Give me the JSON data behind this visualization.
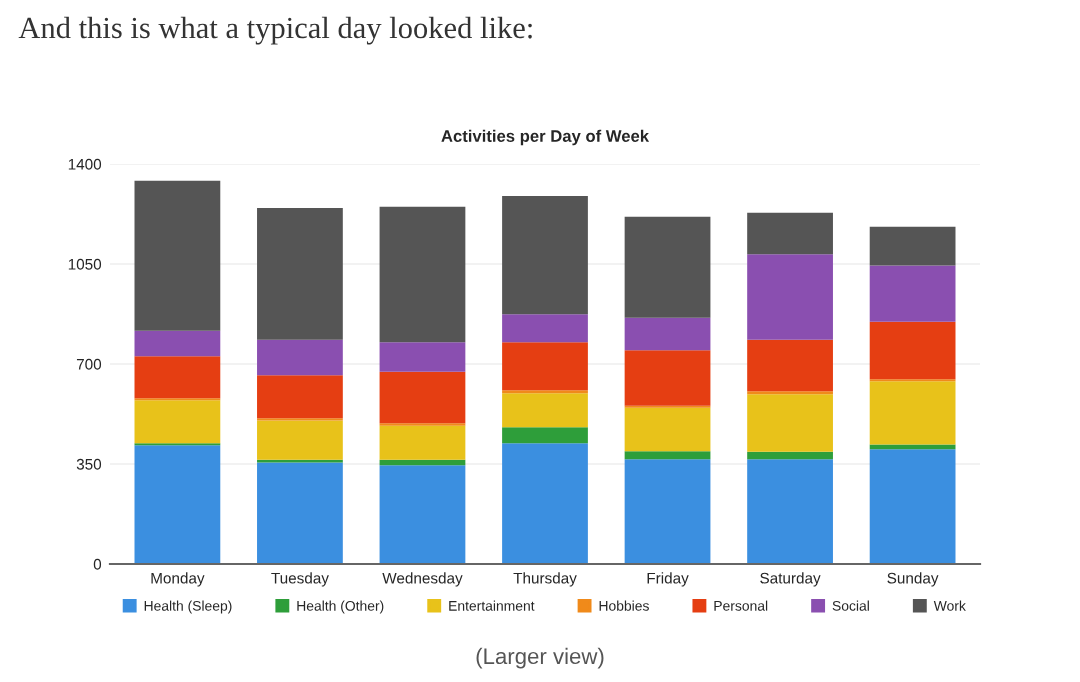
{
  "chart_data": {
    "type": "bar",
    "title": "Activities per Day of Week",
    "annotations": [
      "And this is what a typical day looked like:",
      "(Larger view)"
    ],
    "categories": [
      "Monday",
      "Tuesday",
      "Wednesday",
      "Thursday",
      "Friday",
      "Saturday",
      "Sunday"
    ],
    "stacked": true,
    "series": [
      {
        "name": "Health (Sleep)",
        "color": "#3b8fe0",
        "values": [
          416,
          355,
          346,
          423,
          367,
          367,
          402
        ]
      },
      {
        "name": "Health (Other)",
        "color": "#2e9e3a",
        "values": [
          7,
          10,
          19,
          56,
          28,
          26,
          16
        ]
      },
      {
        "name": "Entertainment",
        "color": "#e8c21a",
        "values": [
          150,
          137,
          119,
          119,
          152,
          201,
          222
        ]
      },
      {
        "name": "Hobbies",
        "color": "#f08a1a",
        "values": [
          7,
          8,
          9,
          10,
          7,
          11,
          7
        ]
      },
      {
        "name": "Personal",
        "color": "#e53e12",
        "values": [
          147,
          151,
          180,
          168,
          194,
          180,
          201
        ]
      },
      {
        "name": "Social",
        "color": "#8a4fb0",
        "values": [
          89,
          124,
          103,
          98,
          114,
          299,
          197
        ]
      },
      {
        "name": "Work",
        "color": "#555555",
        "values": [
          525,
          461,
          474,
          414,
          353,
          145,
          135
        ]
      }
    ],
    "ylim": [
      0,
      1400
    ],
    "yticks": [
      0,
      350,
      700,
      1050,
      1400
    ],
    "grid": "y",
    "legend": "bottom"
  }
}
